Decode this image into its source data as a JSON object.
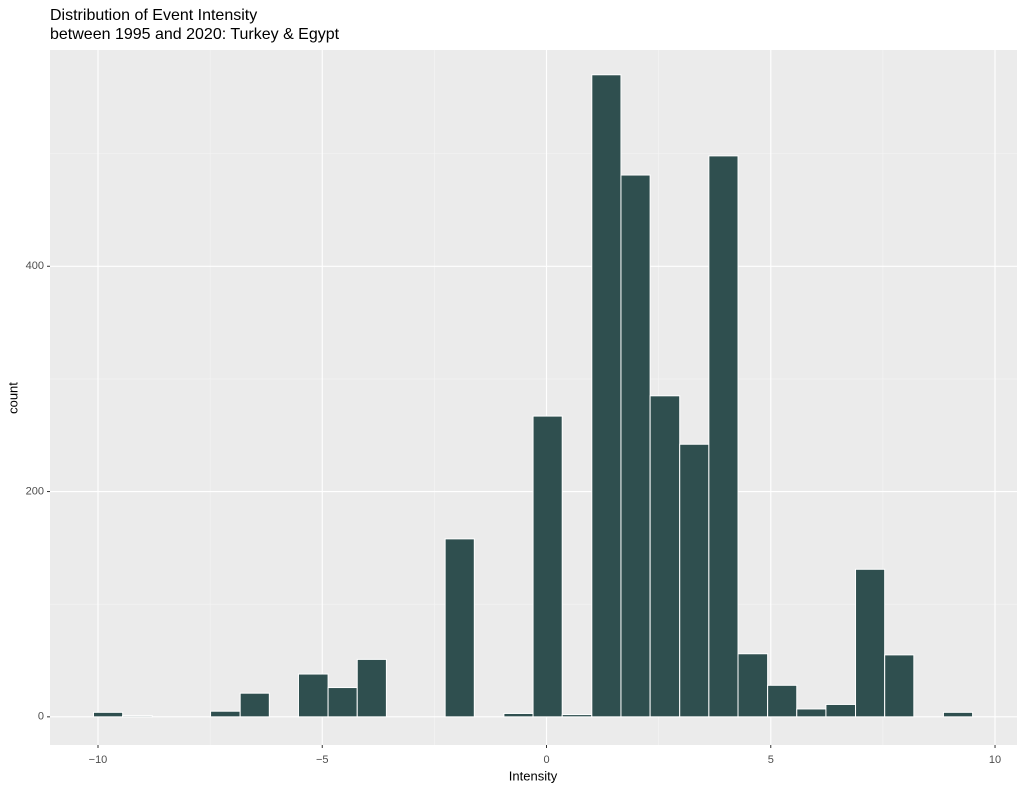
{
  "chart_data": {
    "type": "histogram",
    "title": "Distribution of Event Intensity",
    "subtitle": "between 1995 and 2020: Turkey & Egypt",
    "x_label": "Intensity",
    "y_label": "count",
    "bins": [
      -10.1,
      -9.45,
      -8.79,
      -8.14,
      -7.49,
      -6.83,
      -6.18,
      -5.53,
      -4.87,
      -4.22,
      -3.57,
      -2.91,
      -2.26,
      -1.61,
      -0.95,
      -0.3,
      0.35,
      1.01,
      1.66,
      2.31,
      2.97,
      3.62,
      4.27,
      4.93,
      5.58,
      6.23,
      6.89,
      7.54,
      8.19,
      8.85,
      9.5
    ],
    "values": [
      4,
      1,
      0,
      0,
      5,
      21,
      0,
      38,
      26,
      51,
      0,
      0,
      158,
      0,
      3,
      267,
      2,
      570,
      481,
      285,
      242,
      498,
      56,
      28,
      7,
      11,
      131,
      55,
      0,
      4
    ],
    "color": "#2f4f4f",
    "xlim": [
      -11.07,
      10.49
    ],
    "ylim": [
      -25,
      592
    ],
    "xticks": [
      {
        "value": -10,
        "label": "−10"
      },
      {
        "value": -5,
        "label": "−5"
      },
      0,
      5,
      10
    ],
    "yticks": [
      0,
      200,
      400
    ],
    "grid": true
  }
}
